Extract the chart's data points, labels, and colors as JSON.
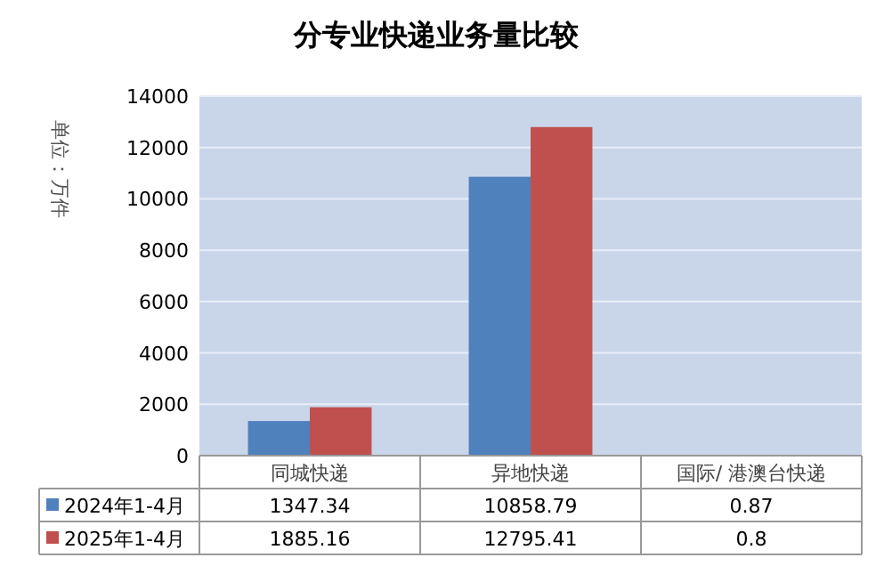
{
  "chart_data": {
    "type": "bar",
    "title": "分专业快递业务量比较",
    "ylabel": "单位：万件",
    "categories": [
      "同城快递",
      "异地快递",
      "国际/ 港澳台快递"
    ],
    "series": [
      {
        "name": "2024年1-4月",
        "color": "#4f81bd",
        "values": [
          1347.34,
          10858.79,
          0.87
        ]
      },
      {
        "name": "2025年1-4月",
        "color": "#c0504d",
        "values": [
          1885.16,
          12795.41,
          0.8
        ]
      }
    ],
    "ylim": [
      0,
      14000
    ],
    "yticks": [
      0,
      2000,
      4000,
      6000,
      8000,
      10000,
      12000,
      14000
    ],
    "grid": "y",
    "data_labels": true,
    "legend": "bottom"
  }
}
